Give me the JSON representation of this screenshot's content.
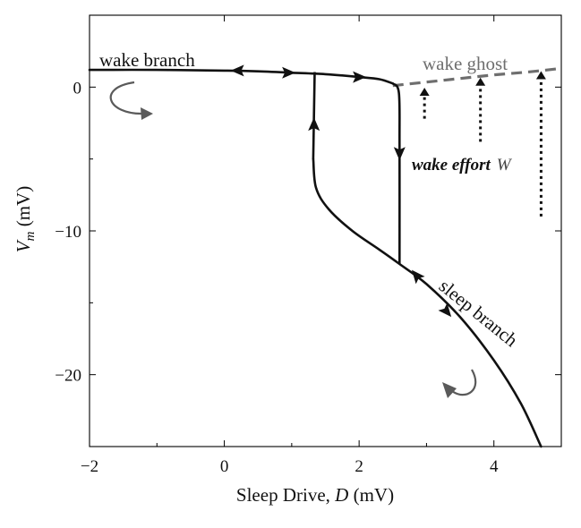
{
  "chart_data": {
    "type": "line",
    "xlabel_text": "Sleep Drive, ",
    "xlabel_var": "D",
    "xlabel_unit": " (mV)",
    "ylabel_var": "V",
    "ylabel_sub": "m",
    "ylabel_unit": " (mV)",
    "xlim": [
      -2,
      5
    ],
    "ylim": [
      -25,
      5
    ],
    "xticks": [
      -2,
      0,
      2,
      4
    ],
    "xtick_labels": [
      "−2",
      "0",
      "2",
      "4"
    ],
    "yticks": [
      0,
      -10,
      -20
    ],
    "ytick_labels": [
      "0",
      "−10",
      "−20"
    ],
    "grid": false,
    "series": [
      {
        "name": "wake branch",
        "style": "solid",
        "color": "#111111",
        "x": [
          -2.0,
          -1.0,
          0.0,
          0.5,
          1.0,
          1.5,
          2.0,
          2.3,
          2.5
        ],
        "y": [
          1.2,
          1.2,
          1.15,
          1.1,
          1.0,
          0.9,
          0.7,
          0.55,
          0.25
        ]
      },
      {
        "name": "sleep branch",
        "style": "solid",
        "color": "#111111",
        "x": [
          1.32,
          1.36,
          1.55,
          1.9,
          2.3,
          2.6,
          3.0,
          3.5,
          4.0,
          4.4,
          4.7
        ],
        "y": [
          -5.0,
          -7.0,
          -8.5,
          -10.0,
          -11.3,
          -12.3,
          -13.7,
          -16.0,
          -19.0,
          -22.0,
          -25.0
        ]
      },
      {
        "name": "wake ghost",
        "style": "dashed",
        "color": "#6e6e6e",
        "x": [
          2.5,
          3.0,
          3.5,
          4.0,
          4.5,
          5.0
        ],
        "y": [
          0.1,
          0.35,
          0.6,
          0.85,
          1.05,
          1.3
        ]
      }
    ],
    "cycle": {
      "up_leg": {
        "x": [
          1.34,
          1.32
        ],
        "y": [
          1.05,
          -5.0
        ]
      },
      "down_leg": {
        "x": [
          2.5,
          2.59,
          2.6,
          2.6
        ],
        "y": [
          0.25,
          -0.4,
          -4.0,
          -12.3
        ]
      }
    },
    "arrows": [
      {
        "x": 0.2,
        "y": 1.15,
        "dir": "left"
      },
      {
        "x": 0.95,
        "y": 1.0,
        "dir": "right"
      },
      {
        "x": 2.0,
        "y": 0.7,
        "dir": "right"
      },
      {
        "x": 1.33,
        "y": -2.6,
        "dir": "up"
      },
      {
        "x": 2.6,
        "y": -4.6,
        "dir": "down"
      },
      {
        "x": 2.85,
        "y": -13.1,
        "dir": "upleft"
      },
      {
        "x": 3.3,
        "y": -15.6,
        "dir": "downright"
      }
    ],
    "wake_effort": [
      {
        "x": 2.97,
        "y_bottom": -2.2,
        "y_top": -0.1
      },
      {
        "x": 3.8,
        "y_bottom": -3.8,
        "y_top": 0.6
      },
      {
        "x": 4.7,
        "y_bottom": -9.0,
        "y_top": 1.05
      }
    ],
    "annotations": {
      "wake_branch": "wake branch",
      "wake_ghost": "wake ghost",
      "wake_effort": "wake effort",
      "wake_effort_var": "W",
      "sleep_branch": "sleep branch"
    },
    "colors": {
      "curve": "#111111",
      "ghost": "#6e6e6e",
      "curl_arrow": "#5a5a5a"
    }
  }
}
